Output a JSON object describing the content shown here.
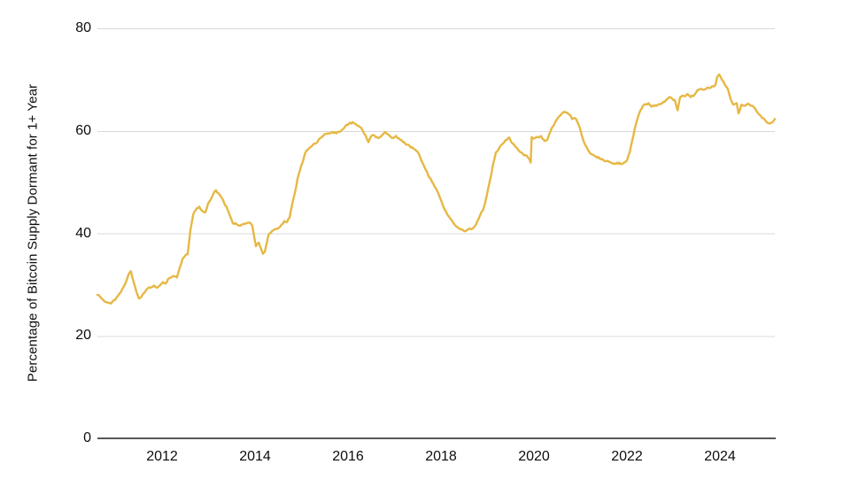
{
  "chart_data": {
    "type": "line",
    "title": "",
    "xlabel": "",
    "ylabel": "Percentage of Bitcoin Supply Dormant for 1+ Year",
    "x_ticks": [
      2012,
      2014,
      2016,
      2018,
      2020,
      2022,
      2024
    ],
    "y_ticks": [
      0,
      20,
      40,
      60,
      80
    ],
    "ylim": [
      0,
      80
    ],
    "xlim": [
      2010.61,
      2025.18
    ],
    "grid": "horizontal-only",
    "legend": "none",
    "line_color": "#E6B844",
    "gridline_color": "#d8d8d8",
    "axis_line_color": "#595959",
    "text_color": "#0d0d0d",
    "series": [
      {
        "name": "Percentage of Bitcoin Supply Dormant for 1+ Year",
        "points": [
          [
            2010.61,
            28.0
          ],
          [
            2010.7,
            27.3
          ],
          [
            2010.8,
            26.6
          ],
          [
            2010.9,
            26.3
          ],
          [
            2010.99,
            27.0
          ],
          [
            2011.09,
            28.3
          ],
          [
            2011.2,
            30.0
          ],
          [
            2011.28,
            32.0
          ],
          [
            2011.33,
            32.6
          ],
          [
            2011.39,
            30.5
          ],
          [
            2011.45,
            28.6
          ],
          [
            2011.5,
            27.3
          ],
          [
            2011.56,
            27.7
          ],
          [
            2011.66,
            29.0
          ],
          [
            2011.75,
            29.4
          ],
          [
            2011.83,
            29.8
          ],
          [
            2011.9,
            29.4
          ],
          [
            2011.96,
            29.9
          ],
          [
            2012.02,
            30.5
          ],
          [
            2012.08,
            30.2
          ],
          [
            2012.13,
            31.1
          ],
          [
            2012.19,
            31.4
          ],
          [
            2012.27,
            31.6
          ],
          [
            2012.32,
            31.4
          ],
          [
            2012.38,
            33.3
          ],
          [
            2012.44,
            35.0
          ],
          [
            2012.5,
            35.7
          ],
          [
            2012.55,
            35.9
          ],
          [
            2012.61,
            40.6
          ],
          [
            2012.67,
            43.7
          ],
          [
            2012.72,
            44.5
          ],
          [
            2012.8,
            45.2
          ],
          [
            2012.86,
            44.4
          ],
          [
            2012.93,
            44.1
          ],
          [
            2012.99,
            45.8
          ],
          [
            2013.05,
            46.6
          ],
          [
            2013.1,
            47.6
          ],
          [
            2013.16,
            48.4
          ],
          [
            2013.22,
            47.8
          ],
          [
            2013.28,
            47.0
          ],
          [
            2013.33,
            46.1
          ],
          [
            2013.41,
            44.6
          ],
          [
            2013.47,
            43.2
          ],
          [
            2013.52,
            42.0
          ],
          [
            2013.6,
            41.8
          ],
          [
            2013.68,
            41.5
          ],
          [
            2013.75,
            41.8
          ],
          [
            2013.83,
            42.0
          ],
          [
            2013.9,
            42.0
          ],
          [
            2013.94,
            41.5
          ],
          [
            2013.98,
            39.4
          ],
          [
            2014.02,
            37.5
          ],
          [
            2014.08,
            38.2
          ],
          [
            2014.13,
            37.0
          ],
          [
            2014.17,
            36.0
          ],
          [
            2014.21,
            36.4
          ],
          [
            2014.25,
            38.0
          ],
          [
            2014.29,
            39.7
          ],
          [
            2014.34,
            40.1
          ],
          [
            2014.42,
            40.8
          ],
          [
            2014.5,
            41.0
          ],
          [
            2014.57,
            41.7
          ],
          [
            2014.63,
            42.4
          ],
          [
            2014.69,
            42.2
          ],
          [
            2014.74,
            43.0
          ],
          [
            2014.8,
            45.7
          ],
          [
            2014.86,
            48.0
          ],
          [
            2014.91,
            50.5
          ],
          [
            2014.99,
            53.1
          ],
          [
            2015.07,
            55.5
          ],
          [
            2015.14,
            56.4
          ],
          [
            2015.22,
            57.0
          ],
          [
            2015.3,
            57.5
          ],
          [
            2015.37,
            58.3
          ],
          [
            2015.47,
            59.1
          ],
          [
            2015.56,
            59.5
          ],
          [
            2015.66,
            59.8
          ],
          [
            2015.75,
            59.5
          ],
          [
            2015.85,
            60.0
          ],
          [
            2015.94,
            60.9
          ],
          [
            2016.02,
            61.4
          ],
          [
            2016.1,
            61.7
          ],
          [
            2016.17,
            61.3
          ],
          [
            2016.25,
            60.8
          ],
          [
            2016.32,
            60.0
          ],
          [
            2016.38,
            59.1
          ],
          [
            2016.44,
            57.8
          ],
          [
            2016.5,
            59.0
          ],
          [
            2016.57,
            59.1
          ],
          [
            2016.65,
            58.6
          ],
          [
            2016.72,
            59.0
          ],
          [
            2016.8,
            59.8
          ],
          [
            2016.88,
            59.2
          ],
          [
            2016.95,
            58.6
          ],
          [
            2017.03,
            59.0
          ],
          [
            2017.1,
            58.5
          ],
          [
            2017.18,
            57.8
          ],
          [
            2017.26,
            57.3
          ],
          [
            2017.33,
            57.0
          ],
          [
            2017.41,
            56.5
          ],
          [
            2017.49,
            56.0
          ],
          [
            2017.54,
            55.2
          ],
          [
            2017.6,
            53.8
          ],
          [
            2017.66,
            52.6
          ],
          [
            2017.73,
            51.2
          ],
          [
            2017.81,
            50.0
          ],
          [
            2017.89,
            48.8
          ],
          [
            2017.96,
            47.4
          ],
          [
            2018.04,
            45.5
          ],
          [
            2018.11,
            44.2
          ],
          [
            2018.19,
            43.0
          ],
          [
            2018.27,
            42.0
          ],
          [
            2018.34,
            41.3
          ],
          [
            2018.42,
            40.8
          ],
          [
            2018.5,
            40.4
          ],
          [
            2018.57,
            40.7
          ],
          [
            2018.65,
            40.8
          ],
          [
            2018.72,
            41.3
          ],
          [
            2018.78,
            42.3
          ],
          [
            2018.84,
            43.5
          ],
          [
            2018.9,
            44.5
          ],
          [
            2018.95,
            46.0
          ],
          [
            2019.01,
            48.5
          ],
          [
            2019.07,
            51.0
          ],
          [
            2019.12,
            53.5
          ],
          [
            2019.18,
            55.8
          ],
          [
            2019.26,
            56.8
          ],
          [
            2019.33,
            57.5
          ],
          [
            2019.41,
            58.2
          ],
          [
            2019.47,
            58.7
          ],
          [
            2019.54,
            57.5
          ],
          [
            2019.62,
            56.8
          ],
          [
            2019.7,
            55.9
          ],
          [
            2019.77,
            55.4
          ],
          [
            2019.85,
            55.1
          ],
          [
            2019.9,
            54.5
          ],
          [
            2019.93,
            53.8
          ],
          [
            2019.95,
            58.8
          ],
          [
            2020.0,
            58.5
          ],
          [
            2020.08,
            58.8
          ],
          [
            2020.15,
            59.0
          ],
          [
            2020.23,
            58.0
          ],
          [
            2020.29,
            58.3
          ],
          [
            2020.34,
            59.5
          ],
          [
            2020.4,
            60.8
          ],
          [
            2020.46,
            61.8
          ],
          [
            2020.51,
            62.5
          ],
          [
            2020.59,
            63.3
          ],
          [
            2020.65,
            63.7
          ],
          [
            2020.7,
            63.6
          ],
          [
            2020.76,
            63.2
          ],
          [
            2020.82,
            62.3
          ],
          [
            2020.88,
            62.5
          ],
          [
            2020.93,
            61.8
          ],
          [
            2020.99,
            60.5
          ],
          [
            2021.05,
            58.5
          ],
          [
            2021.1,
            57.3
          ],
          [
            2021.18,
            56.0
          ],
          [
            2021.26,
            55.4
          ],
          [
            2021.33,
            55.0
          ],
          [
            2021.41,
            54.6
          ],
          [
            2021.49,
            54.3
          ],
          [
            2021.56,
            54.1
          ],
          [
            2021.64,
            53.9
          ],
          [
            2021.71,
            53.6
          ],
          [
            2021.79,
            53.8
          ],
          [
            2021.87,
            53.5
          ],
          [
            2021.94,
            53.8
          ],
          [
            2022.0,
            54.2
          ],
          [
            2022.06,
            55.8
          ],
          [
            2022.11,
            58.0
          ],
          [
            2022.17,
            60.5
          ],
          [
            2022.23,
            62.5
          ],
          [
            2022.29,
            64.0
          ],
          [
            2022.34,
            64.8
          ],
          [
            2022.4,
            65.2
          ],
          [
            2022.46,
            65.4
          ],
          [
            2022.53,
            64.7
          ],
          [
            2022.61,
            65.0
          ],
          [
            2022.69,
            65.2
          ],
          [
            2022.76,
            65.4
          ],
          [
            2022.84,
            66.0
          ],
          [
            2022.91,
            66.6
          ],
          [
            2022.97,
            66.3
          ],
          [
            2023.03,
            66.0
          ],
          [
            2023.09,
            64.0
          ],
          [
            2023.14,
            66.5
          ],
          [
            2023.22,
            66.8
          ],
          [
            2023.3,
            67.2
          ],
          [
            2023.37,
            66.6
          ],
          [
            2023.45,
            67.0
          ],
          [
            2023.52,
            68.0
          ],
          [
            2023.6,
            68.2
          ],
          [
            2023.68,
            68.1
          ],
          [
            2023.75,
            68.4
          ],
          [
            2023.83,
            68.7
          ],
          [
            2023.9,
            68.9
          ],
          [
            2023.94,
            70.5
          ],
          [
            2023.98,
            71.0
          ],
          [
            2024.04,
            70.0
          ],
          [
            2024.1,
            69.1
          ],
          [
            2024.17,
            68.2
          ],
          [
            2024.23,
            66.2
          ],
          [
            2024.29,
            65.1
          ],
          [
            2024.36,
            65.4
          ],
          [
            2024.4,
            63.4
          ],
          [
            2024.46,
            65.1
          ],
          [
            2024.53,
            64.9
          ],
          [
            2024.61,
            65.3
          ],
          [
            2024.69,
            64.9
          ],
          [
            2024.76,
            64.3
          ],
          [
            2024.84,
            63.2
          ],
          [
            2024.91,
            62.5
          ],
          [
            2024.99,
            61.9
          ],
          [
            2025.07,
            61.4
          ],
          [
            2025.12,
            61.6
          ],
          [
            2025.18,
            62.3
          ]
        ]
      }
    ]
  }
}
